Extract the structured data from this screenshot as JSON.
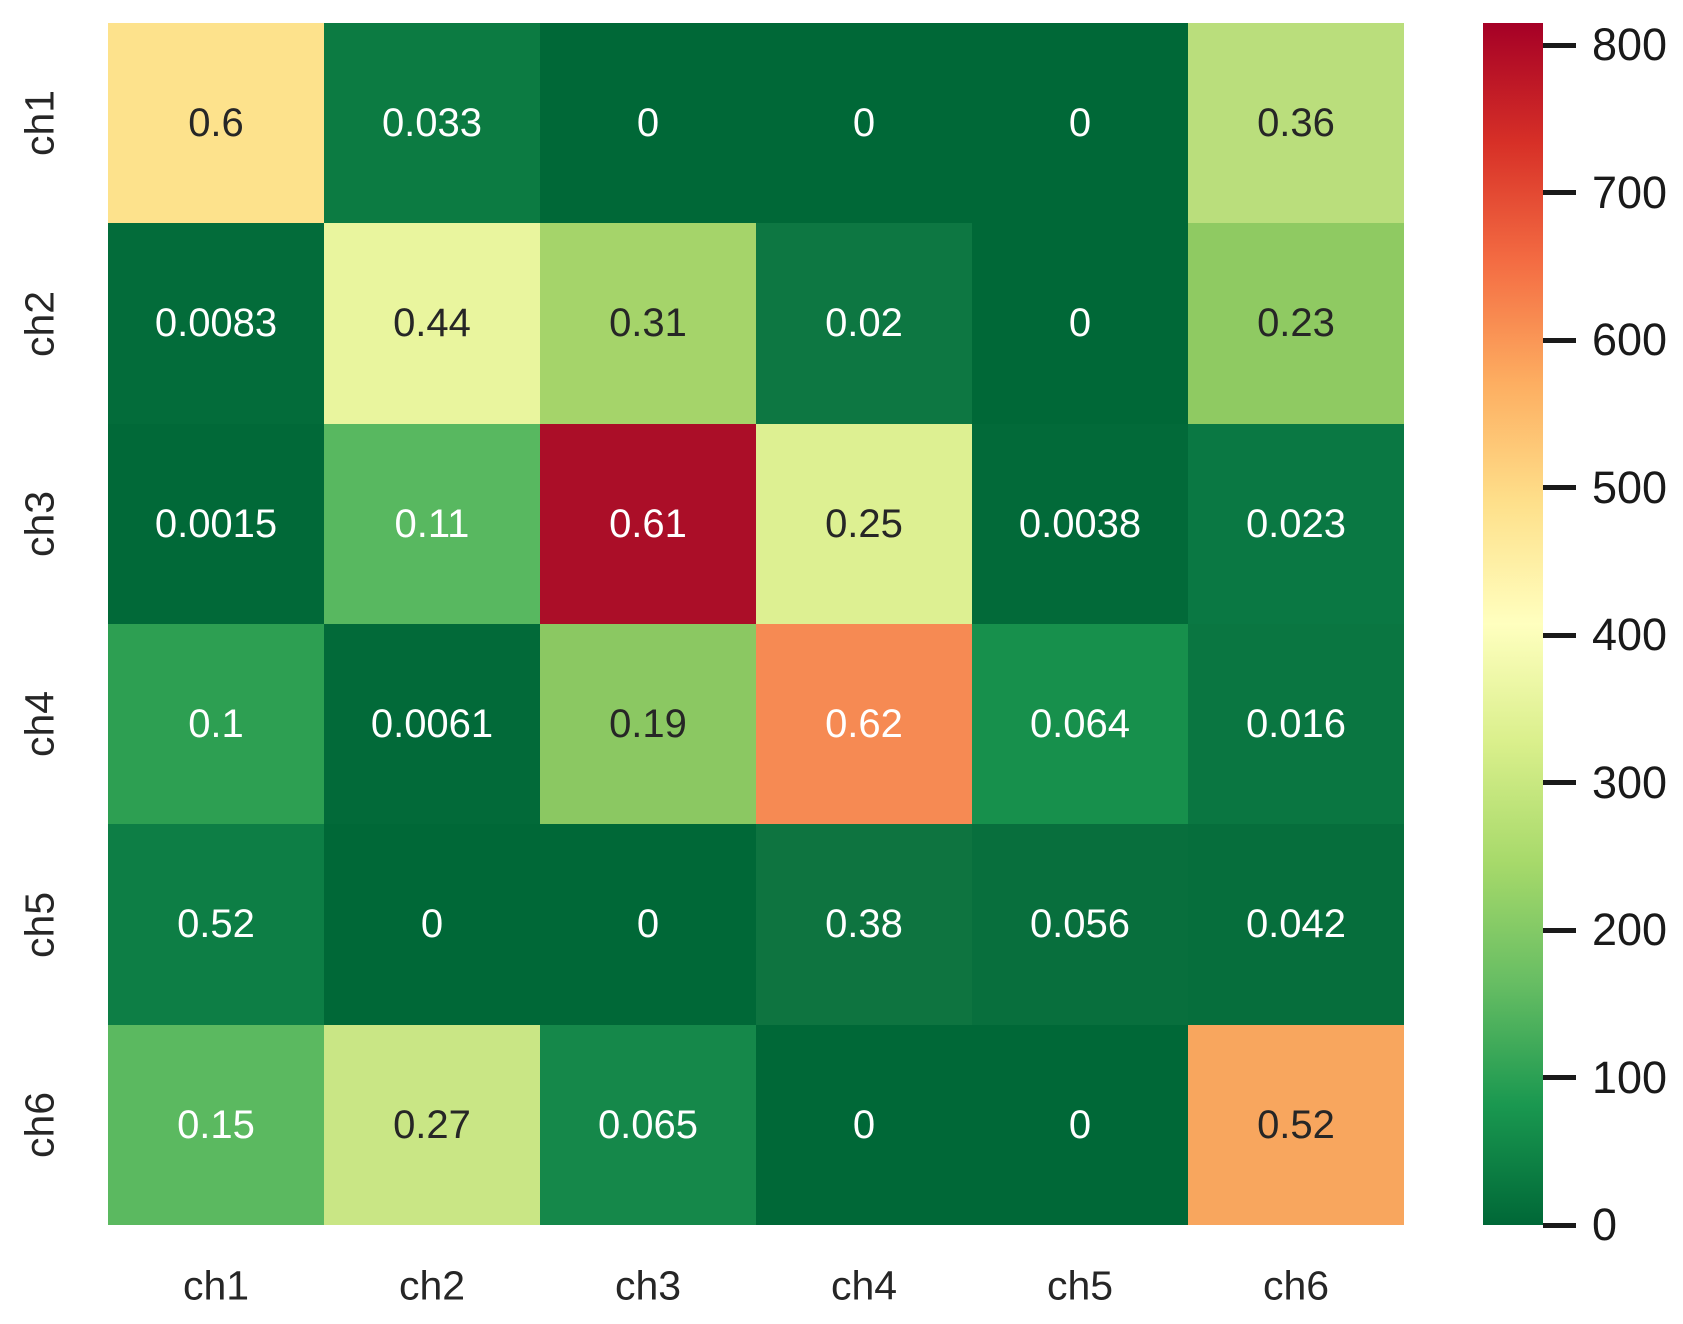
{
  "chart_data": {
    "type": "heatmap",
    "title": "",
    "xlabel": "",
    "ylabel": "",
    "x_categories": [
      "ch1",
      "ch2",
      "ch3",
      "ch4",
      "ch5",
      "ch6"
    ],
    "y_categories": [
      "ch1",
      "ch2",
      "ch3",
      "ch4",
      "ch5",
      "ch6"
    ],
    "annotations": [
      [
        "0.6",
        "0.033",
        "0",
        "0",
        "0",
        "0.36"
      ],
      [
        "0.0083",
        "0.44",
        "0.31",
        "0.02",
        "0",
        "0.23"
      ],
      [
        "0.0015",
        "0.11",
        "0.61",
        "0.25",
        "0.0038",
        "0.023"
      ],
      [
        "0.1",
        "0.0061",
        "0.19",
        "0.62",
        "0.064",
        "0.016"
      ],
      [
        "0.52",
        "0",
        "0",
        "0.38",
        "0.056",
        "0.042"
      ],
      [
        "0.15",
        "0.27",
        "0.065",
        "0",
        "0",
        "0.52"
      ]
    ],
    "cell_colors": [
      [
        "#fde28c",
        "#0c7b42",
        "#006837",
        "#006837",
        "#006837",
        "#bade7c"
      ],
      [
        "#036c3a",
        "#e9f59e",
        "#a5d46a",
        "#0d7742",
        "#006837",
        "#8fca62"
      ],
      [
        "#016938",
        "#58b860",
        "#ab0e28",
        "#ddf092",
        "#026a39",
        "#0a7843"
      ],
      [
        "#2d9f52",
        "#026a39",
        "#8bc862",
        "#f68a53",
        "#17904c",
        "#0a7641"
      ],
      [
        "#0d7e45",
        "#006837",
        "#006837",
        "#0e7440",
        "#086f3d",
        "#066e3c"
      ],
      [
        "#5bb960",
        "#c9e685",
        "#15884a",
        "#006837",
        "#006837",
        "#f8a65e"
      ]
    ],
    "text_colors": [
      [
        "#262626",
        "#ffffff",
        "#ffffff",
        "#ffffff",
        "#ffffff",
        "#262626"
      ],
      [
        "#ffffff",
        "#262626",
        "#262626",
        "#ffffff",
        "#ffffff",
        "#262626"
      ],
      [
        "#ffffff",
        "#ffffff",
        "#ffffff",
        "#262626",
        "#ffffff",
        "#ffffff"
      ],
      [
        "#ffffff",
        "#ffffff",
        "#262626",
        "#ffffff",
        "#ffffff",
        "#ffffff"
      ],
      [
        "#ffffff",
        "#ffffff",
        "#ffffff",
        "#ffffff",
        "#ffffff",
        "#ffffff"
      ],
      [
        "#ffffff",
        "#262626",
        "#ffffff",
        "#ffffff",
        "#ffffff",
        "#262626"
      ]
    ],
    "colorbar": {
      "tick_labels": [
        "0",
        "100",
        "200",
        "300",
        "400",
        "500",
        "600",
        "700",
        "800"
      ],
      "tick_values": [
        0,
        100,
        200,
        300,
        400,
        500,
        600,
        700,
        800
      ],
      "vmin": 0,
      "vmax": 815,
      "colormap": "RdYlGn_r",
      "gradient_bottom_to_top": [
        "#006837",
        "#1a9850",
        "#66bd63",
        "#a6d96a",
        "#d9ef8b",
        "#ffffbf",
        "#fee08b",
        "#fdae61",
        "#f46d43",
        "#d73027",
        "#a50026"
      ]
    },
    "legend": {
      "position": "right-colorbar"
    },
    "grid": false
  }
}
